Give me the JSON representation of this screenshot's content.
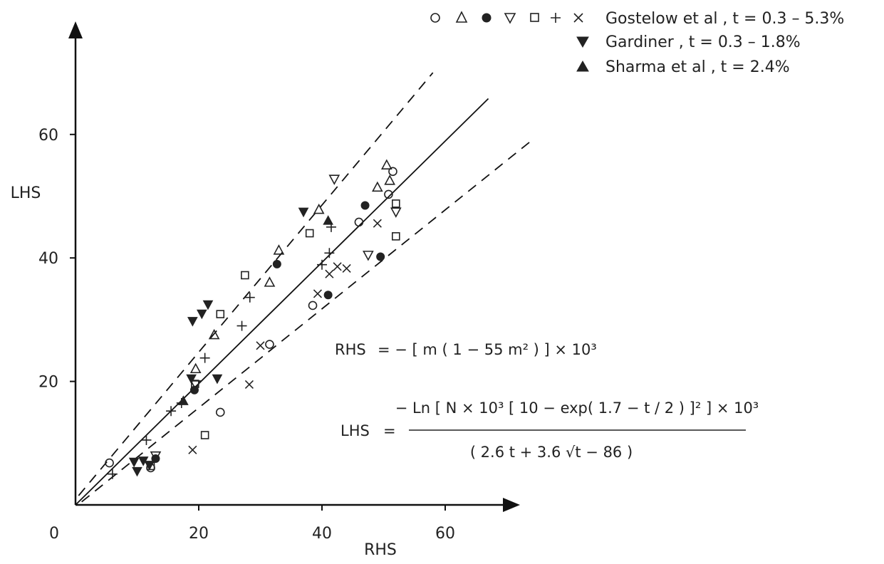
{
  "chart_data": {
    "type": "scatter",
    "title": "",
    "xlabel": "RHS",
    "ylabel": "LHS",
    "xlim": [
      0,
      70
    ],
    "ylim": [
      0,
      75
    ],
    "x_ticks": [
      0,
      20,
      40,
      60
    ],
    "y_ticks": [
      20,
      40,
      60
    ],
    "grid": false,
    "legend_position": "top-right",
    "legend": [
      {
        "symbols": "○ △ ● ▽ ◻ + ×",
        "label": "Gostelow et al , t = 0.3 – 5.3%"
      },
      {
        "symbols": "▼",
        "label": "Gardiner , t = 0.3 – 1.8%"
      },
      {
        "symbols": "▲",
        "label": "Sharma et al , t = 2.4%"
      }
    ],
    "series": [
      {
        "marker": "open-circle",
        "points": [
          [
            5.5,
            6.8
          ],
          [
            12.2,
            6
          ],
          [
            23.5,
            15
          ],
          [
            31.5,
            26
          ],
          [
            38.5,
            32.3
          ],
          [
            46,
            45.8
          ],
          [
            50.8,
            50.3
          ],
          [
            51.5,
            54
          ]
        ]
      },
      {
        "marker": "open-triangle-up",
        "points": [
          [
            19.5,
            22
          ],
          [
            22.5,
            27.5
          ],
          [
            31.5,
            36
          ],
          [
            33,
            41.2
          ],
          [
            39.5,
            47.8
          ],
          [
            49,
            51.4
          ],
          [
            50.5,
            55
          ],
          [
            51,
            52.5
          ]
        ]
      },
      {
        "marker": "filled-circle",
        "points": [
          [
            13,
            7.5
          ],
          [
            19.3,
            18.6
          ],
          [
            32.7,
            39
          ],
          [
            41,
            34
          ],
          [
            47,
            48.5
          ],
          [
            49.5,
            40.2
          ]
        ]
      },
      {
        "marker": "open-triangle-down",
        "points": [
          [
            13,
            8
          ],
          [
            19.5,
            19.5
          ],
          [
            42,
            52.8
          ],
          [
            47.5,
            40.5
          ],
          [
            52,
            47.5
          ]
        ]
      },
      {
        "marker": "open-square",
        "points": [
          [
            12.2,
            6.3
          ],
          [
            19.4,
            19.6
          ],
          [
            21,
            11.3
          ],
          [
            23.5,
            30.9
          ],
          [
            27.5,
            37.2
          ],
          [
            38,
            44
          ],
          [
            52,
            43.5
          ],
          [
            52,
            48.8
          ]
        ]
      },
      {
        "marker": "plus",
        "points": [
          [
            6,
            5
          ],
          [
            11.5,
            10.5
          ],
          [
            15.5,
            15.2
          ],
          [
            17.2,
            16.5
          ],
          [
            21,
            23.8
          ],
          [
            27,
            29
          ],
          [
            28.3,
            33.6
          ],
          [
            40,
            38.9
          ],
          [
            41.2,
            40.8
          ],
          [
            41.5,
            45
          ]
        ]
      },
      {
        "marker": "cross",
        "points": [
          [
            19,
            8.9
          ],
          [
            28.2,
            19.5
          ],
          [
            30,
            25.8
          ],
          [
            39.3,
            34.2
          ],
          [
            41.2,
            37.4
          ],
          [
            42.5,
            38.6
          ],
          [
            44,
            38.3
          ],
          [
            49,
            45.6
          ]
        ]
      },
      {
        "marker": "filled-triangle-down",
        "points": [
          [
            9.5,
            7
          ],
          [
            10,
            5.5
          ],
          [
            11,
            7.2
          ],
          [
            12,
            6.5
          ],
          [
            18.8,
            20.5
          ],
          [
            19,
            29.8
          ],
          [
            20.5,
            31
          ],
          [
            21.5,
            32.5
          ],
          [
            23,
            20.5
          ],
          [
            37,
            47.5
          ]
        ]
      },
      {
        "marker": "filled-triangle-up",
        "points": [
          [
            17.5,
            16.8
          ],
          [
            41,
            46
          ]
        ]
      }
    ],
    "lines": [
      {
        "style": "solid",
        "from": [
          0,
          0
        ],
        "to": [
          67,
          65.8
        ]
      },
      {
        "style": "dashed",
        "from": [
          0.5,
          1.5
        ],
        "to": [
          58,
          70
        ]
      },
      {
        "style": "dashed",
        "from": [
          1,
          0.5
        ],
        "to": [
          74,
          59
        ]
      }
    ],
    "annotations": {
      "rhs_equation": {
        "lhs": "RHS",
        "rhs": "= − [ m ( 1 − 55 m² ) ] × 10³"
      },
      "lhs_equation": {
        "lhs": "LHS",
        "eq": "=",
        "numerator": "− Ln [ N × 10³ [ 10 − exp( 1.7 − t / 2 ) ]² ] × 10³",
        "denominator": "( 2.6 t + 3.6 √t − 86 )"
      }
    }
  }
}
